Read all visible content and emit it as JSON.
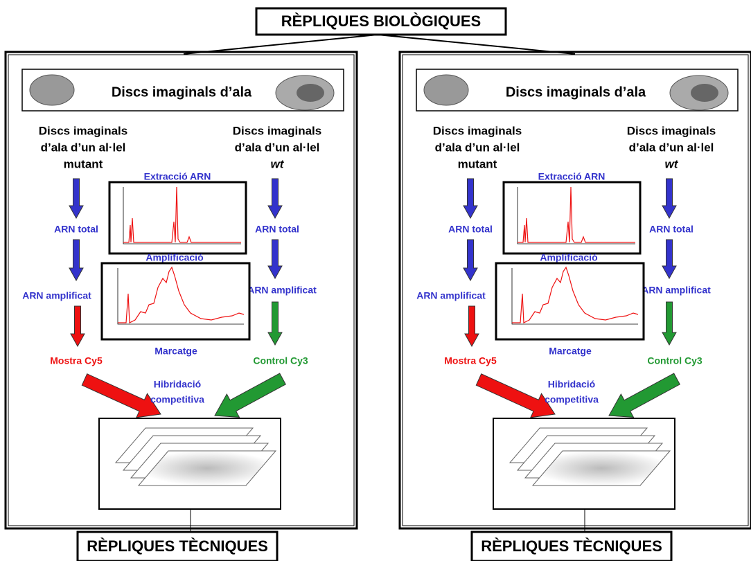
{
  "title": "RÈPLIQUES BIOLÒGIQUES",
  "panels": [
    {
      "header": "Discs imaginals d’ala",
      "mutant_sample": [
        "Discs imaginals",
        "d’ala d’un al·lel",
        "mutant"
      ],
      "wt_sample": [
        "Discs imaginals",
        "d’ala d’un al·lel",
        "wt"
      ],
      "left_steps": [
        "ARN total",
        "ARN amplificat"
      ],
      "right_steps": [
        "ARN total",
        "ARN amplificat"
      ],
      "extraction": "Extracció ARN",
      "amplification": "Amplificació",
      "labeling": "Marcatge",
      "sample": "Mostra Cy5",
      "control": "Control Cy3",
      "hybridization": [
        "Hibridació",
        "competitiva"
      ],
      "footer": "RÈPLIQUES TÈCNIQUES"
    },
    {
      "header": "Discs imaginals d’ala",
      "mutant_sample": [
        "Discs imaginals",
        "d’ala d’un al·lel",
        "mutant"
      ],
      "wt_sample": [
        "Discs imaginals",
        "d’ala d’un al·lel",
        "wt"
      ],
      "left_steps": [
        "ARN total",
        "ARN amplificat"
      ],
      "right_steps": [
        "ARN total",
        "ARN amplificat"
      ],
      "extraction": "Extracció ARN",
      "amplification": "Amplificació",
      "labeling": "Marcatge",
      "sample": "Mostra Cy5",
      "control": "Control Cy3",
      "hybridization": [
        "Hibridació",
        "competitiva"
      ],
      "footer": "RÈPLIQUES TÈCNIQUES"
    }
  ]
}
